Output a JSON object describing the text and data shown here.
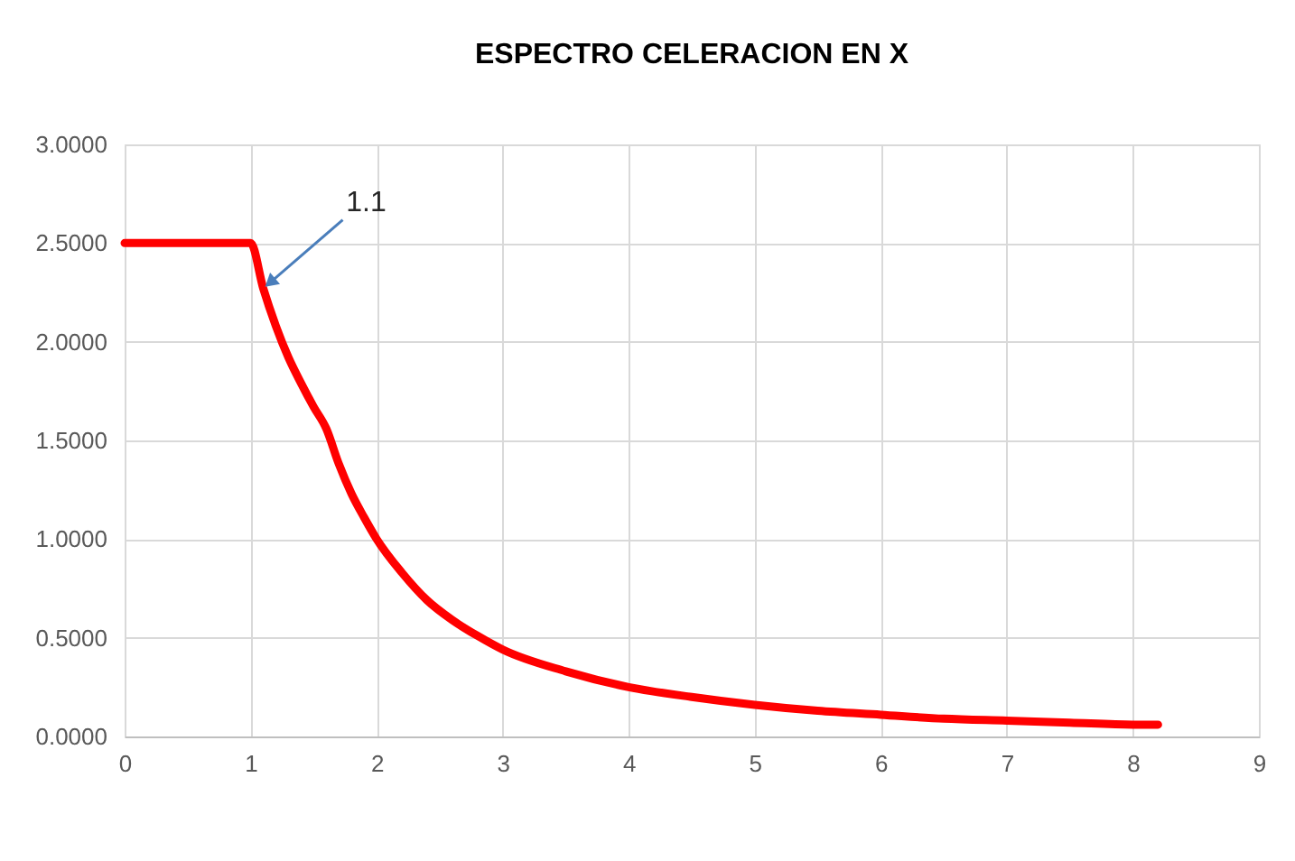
{
  "chart_data": {
    "type": "line",
    "title": "ESPECTRO CELERACION  EN X",
    "x": [
      0,
      0.5,
      0.9,
      1.0,
      1.1,
      1.2,
      1.3,
      1.4,
      1.5,
      1.6,
      1.7,
      1.8,
      1.9,
      2.0,
      2.2,
      2.4,
      2.6,
      2.8,
      3.0,
      3.5,
      4.0,
      4.5,
      5.0,
      5.5,
      6.0,
      6.5,
      7.0,
      7.5,
      8.0,
      8.2
    ],
    "series": [
      {
        "color": "#ff0000",
        "values": [
          2.5,
          2.5,
          2.5,
          2.5,
          2.27,
          2.08,
          1.92,
          1.79,
          1.67,
          1.56,
          1.38,
          1.23,
          1.11,
          1.0,
          0.83,
          0.69,
          0.59,
          0.51,
          0.44,
          0.33,
          0.25,
          0.2,
          0.16,
          0.13,
          0.11,
          0.09,
          0.08,
          0.07,
          0.06,
          0.06
        ]
      }
    ],
    "xlim": [
      0,
      9
    ],
    "xticks": [
      0,
      1,
      2,
      3,
      4,
      5,
      6,
      7,
      8,
      9
    ],
    "ylim": [
      0,
      3
    ],
    "yticks": [
      {
        "value": 0,
        "label": "0.0000"
      },
      {
        "value": 0.5,
        "label": "0.5000"
      },
      {
        "value": 1,
        "label": "1.0000"
      },
      {
        "value": 1.5,
        "label": "1.5000"
      },
      {
        "value": 2,
        "label": "2.0000"
      },
      {
        "value": 2.5,
        "label": "2.5000"
      },
      {
        "value": 3,
        "label": "3.0000"
      }
    ],
    "grid": true,
    "line_style": "solid",
    "annotations": [
      {
        "text": "1.1",
        "x": 1.1,
        "y": 2.27
      }
    ]
  }
}
